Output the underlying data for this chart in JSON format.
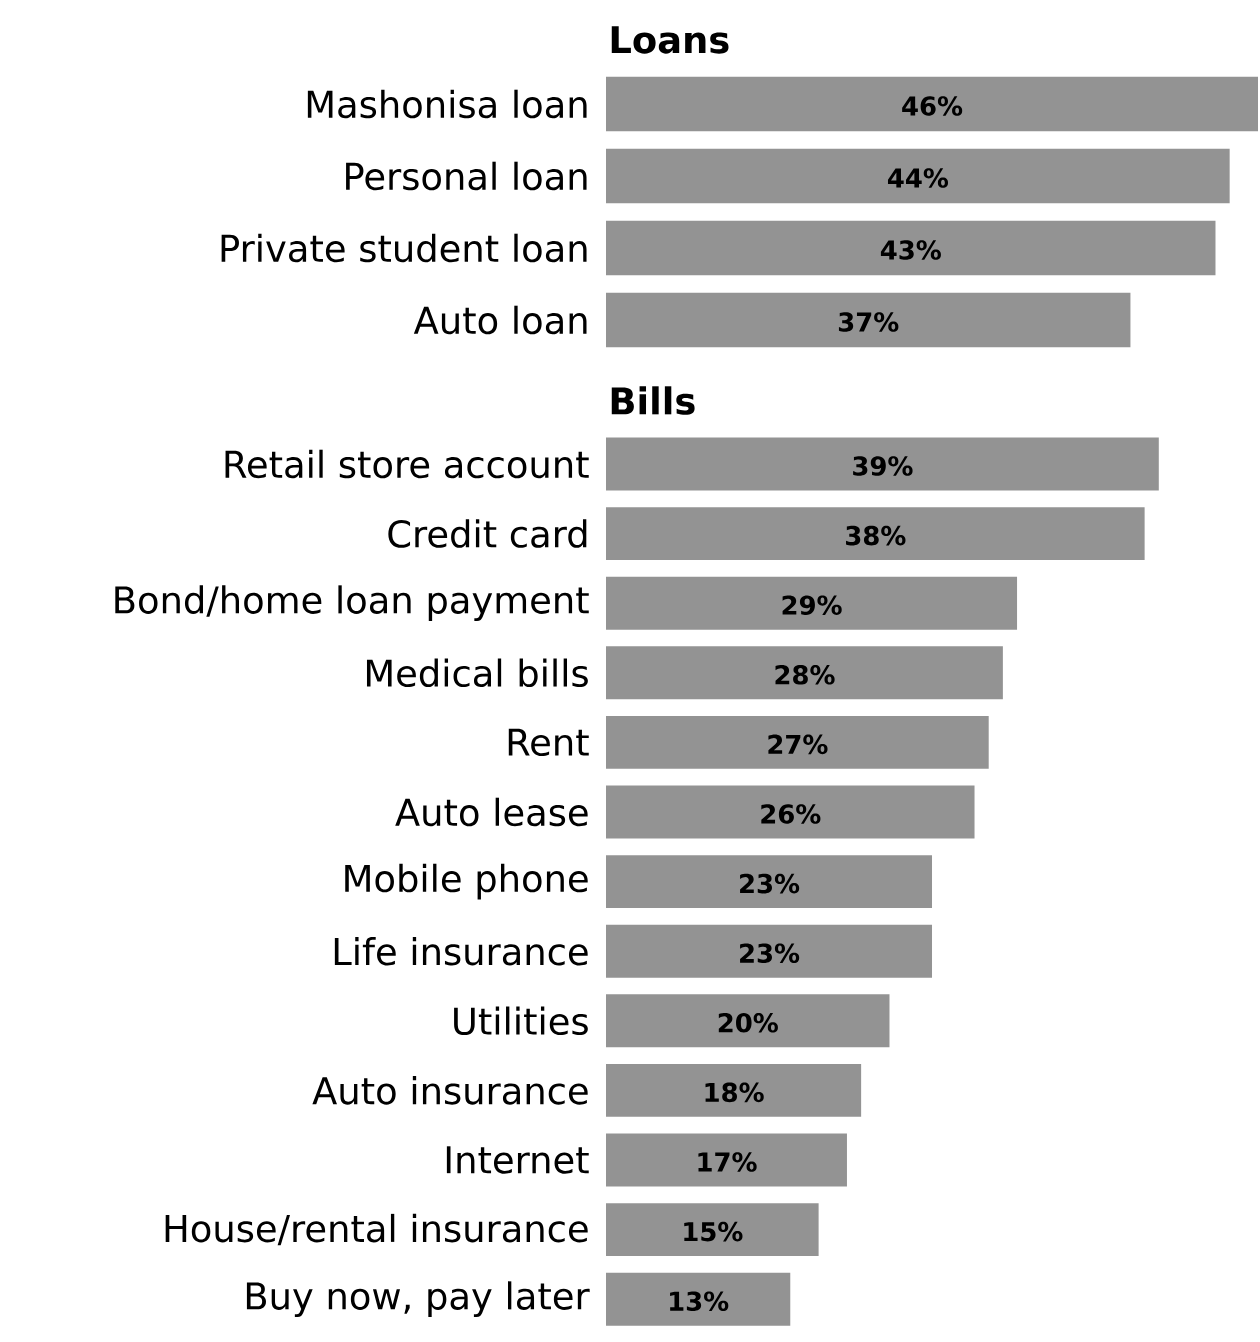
{
  "chart_data": [
    {
      "type": "bar",
      "orientation": "horizontal",
      "title": "Loans",
      "categories": [
        "Mashonisa loan",
        "Personal loan",
        "Private student loan",
        "Auto loan"
      ],
      "values": [
        46,
        44,
        43,
        37
      ],
      "value_labels": [
        "46%",
        "44%",
        "43%",
        "37%"
      ],
      "color": "#939393",
      "tick_labels": "y"
    },
    {
      "type": "bar",
      "orientation": "horizontal",
      "title": "Bills",
      "categories": [
        "Retail store account",
        "Credit card",
        "Bond/home loan payment",
        "Medical bills",
        "Rent",
        "Auto lease",
        "Mobile phone",
        "Life insurance",
        "Utilities",
        "Auto insurance",
        "Internet",
        "House/rental insurance",
        "Buy now, pay later"
      ],
      "values": [
        39,
        38,
        29,
        28,
        27,
        26,
        23,
        23,
        20,
        18,
        17,
        15,
        13
      ],
      "value_labels": [
        "39%",
        "38%",
        "29%",
        "28%",
        "27%",
        "26%",
        "23%",
        "23%",
        "20%",
        "18%",
        "17%",
        "15%",
        "13%"
      ],
      "color": "#939393",
      "tick_labels": "y"
    }
  ]
}
